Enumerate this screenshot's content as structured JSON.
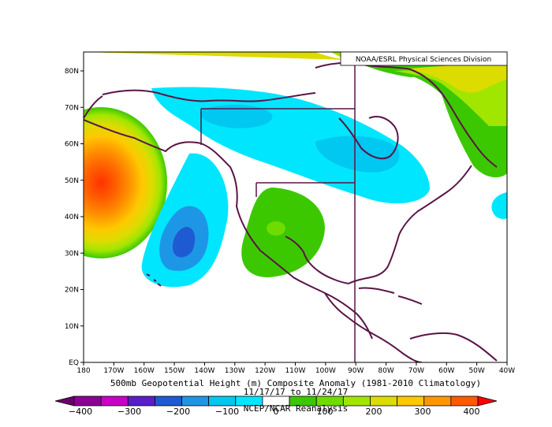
{
  "map": {
    "credit": "NOAA/ESRL Physical Sciences Division",
    "title_line1": "500mb Geopotential Height (m) Composite Anomaly (1981-2010 Climatology)",
    "title_line2": "11/17/17 to 11/24/17",
    "source": "NCEP/NCAR Reanalysis",
    "lat_labels": [
      "EQ",
      "10N",
      "20N",
      "30N",
      "40N",
      "50N",
      "60N",
      "70N",
      "80N"
    ],
    "lon_labels": [
      "180",
      "170W",
      "160W",
      "150W",
      "140W",
      "130W",
      "120W",
      "110W",
      "100W",
      "90W",
      "80W",
      "70W",
      "60W",
      "50W",
      "40W"
    ]
  },
  "colorbar": {
    "labels": [
      "-400",
      "-300",
      "-200",
      "-100",
      "0",
      "100",
      "200",
      "300",
      "400"
    ],
    "colors": [
      "#6a006a",
      "#8c0094",
      "#c800c8",
      "#5a1ec8",
      "#1e5ad2",
      "#1e96e6",
      "#00c8f0",
      "#00e6ff",
      "#ffffff",
      "#3cc800",
      "#6edc00",
      "#a0e600",
      "#dcdc00",
      "#ffc800",
      "#ff9600",
      "#ff5a00",
      "#ff0000"
    ]
  }
}
